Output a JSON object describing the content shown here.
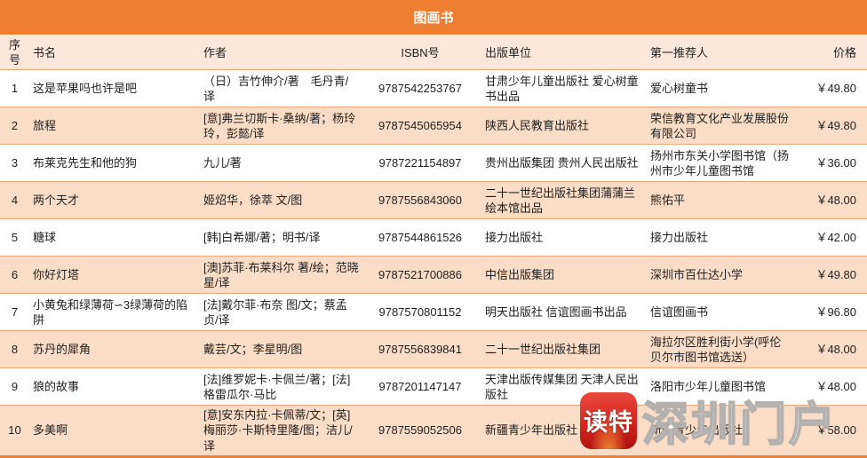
{
  "title": "图画书",
  "colors": {
    "banner": "#ED7D31",
    "header_row": "#FCE8DB",
    "row_alt": "#FBDCC6",
    "border": "#F0A678",
    "watermark_red": "#D6251D"
  },
  "table": {
    "columns": [
      {
        "key": "num",
        "label": "序号"
      },
      {
        "key": "title",
        "label": "书名"
      },
      {
        "key": "author",
        "label": "作者"
      },
      {
        "key": "isbn",
        "label": "ISBN号"
      },
      {
        "key": "publisher",
        "label": "出版单位"
      },
      {
        "key": "recommender",
        "label": "第一推荐人"
      },
      {
        "key": "price",
        "label": "价格"
      }
    ],
    "rows": [
      {
        "num": "1",
        "title": "这是苹果吗也许是吧",
        "author": "（日）吉竹伸介/著　毛丹青/译",
        "isbn": "9787542253767",
        "publisher": "甘肃少年儿童出版社 爱心树童书出品",
        "recommender": "爱心树童书",
        "price": "￥49.80"
      },
      {
        "num": "2",
        "title": "旅程",
        "author": "[意]弗兰切斯卡·桑纳/著；杨玲玲，彭懿/译",
        "isbn": "9787545065954",
        "publisher": "陕西人民教育出版社",
        "recommender": "荣信教育文化产业发展股份有限公司",
        "price": "￥49.80"
      },
      {
        "num": "3",
        "title": "布莱克先生和他的狗",
        "author": "九儿/著",
        "isbn": "9787221154897",
        "publisher": "贵州出版集团 贵州人民出版社",
        "recommender": "扬州市东关小学图书馆（扬州市少年儿童图书馆",
        "price": "￥36.00"
      },
      {
        "num": "4",
        "title": "两个天才",
        "author": "姬炤华，徐萃 文/图",
        "isbn": "9787556843060",
        "publisher": "二十一世纪出版社集团蒲蒲兰绘本馆出品",
        "recommender": "熊佑平",
        "price": "￥48.00"
      },
      {
        "num": "5",
        "title": "糖球",
        "author": "[韩]白希娜/著；明书/译",
        "isbn": "9787544861526",
        "publisher": "接力出版社",
        "recommender": "接力出版社",
        "price": "￥42.00"
      },
      {
        "num": "6",
        "title": "你好灯塔",
        "author": "[澳]苏菲·布莱科尔 著/绘；范晓星/译",
        "isbn": "9787521700886",
        "publisher": "中信出版集团",
        "recommender": "深圳市百仕达小学",
        "price": "￥49.80"
      },
      {
        "num": "7",
        "title": "小黄兔和绿薄荷∽3绿薄荷的陷阱",
        "author": "[法]戴尔菲·布奈 图/文；蔡孟贞/译",
        "isbn": "9787570801152",
        "publisher": "明天出版社 信谊图画书出品",
        "recommender": "信谊图画书",
        "price": "￥96.80"
      },
      {
        "num": "8",
        "title": "苏丹的犀角",
        "author": "戴芸/文；李星明/图",
        "isbn": "9787556839841",
        "publisher": "二十一世纪出版社集团",
        "recommender": "海拉尔区胜利街小学(呼伦贝尔市图书馆选送）",
        "price": "￥48.00"
      },
      {
        "num": "9",
        "title": "狼的故事",
        "author": "[法]维罗妮卡·卡佩兰/著；[法]格雷瓜尔·马比",
        "isbn": "9787201147147",
        "publisher": "天津出版传媒集团 天津人民出版社",
        "recommender": "洛阳市少年儿童图书馆",
        "price": "￥48.00"
      },
      {
        "num": "10",
        "title": "多美啊",
        "author": "[意]安东内拉·卡佩蒂/文；[英]梅丽莎·卡斯特里隆/图；洁儿/译",
        "isbn": "9787559052506",
        "publisher": "新疆青少年出版社",
        "recommender": "新疆青少年出版社",
        "price": "￥58.00"
      }
    ]
  },
  "watermark": {
    "icon_text": "读特",
    "site_text": "深圳门户"
  }
}
